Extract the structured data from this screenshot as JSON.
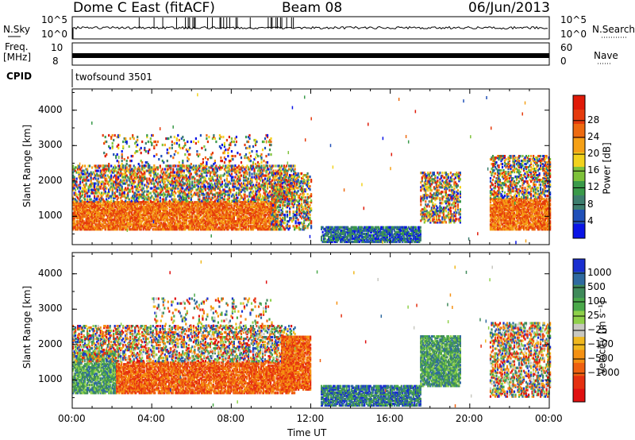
{
  "header": {
    "station": "Dome C East (fitACF)",
    "beam": "Beam 08",
    "date": "06/Jun/2013"
  },
  "strip_panels": {
    "nsky": {
      "label": "N.Sky",
      "left_ticks": [
        "10^5",
        "10^0"
      ],
      "right_ticks": [
        "10^5",
        "10^0"
      ],
      "right_label": "N.Search"
    },
    "freq": {
      "label_line1": "Freq.",
      "label_line2": "[MHz]",
      "left_ticks": [
        "10",
        "8"
      ],
      "right_ticks": [
        "60",
        "0"
      ],
      "right_label": "Nave"
    },
    "cpid": {
      "label": "CPID",
      "value": "twofsound 3501"
    }
  },
  "chart_data": [
    {
      "type": "heatmap",
      "name": "power-panel",
      "ylabel": "Slant Range [km]",
      "xlabel": "",
      "ylim": [
        200,
        4600
      ],
      "xlim": [
        0,
        24
      ],
      "yticks": [
        "1000",
        "2000",
        "3000",
        "4000"
      ],
      "colorbar": {
        "label": "Power [dB]",
        "ticks": [
          "4",
          "8",
          "12",
          "16",
          "20",
          "24",
          "28"
        ],
        "colors": [
          "#0a14e6",
          "#2050b8",
          "#3d7d6e",
          "#3a9a4a",
          "#7ec23a",
          "#f2d21c",
          "#f5a016",
          "#ee6a10",
          "#e53a0c",
          "#e01a08"
        ]
      },
      "echo_regions": [
        {
          "t0": 0.0,
          "t1": 10.3,
          "r0": 600,
          "r1": 1400,
          "level": "high"
        },
        {
          "t0": 0.0,
          "t1": 11.2,
          "r0": 1400,
          "r1": 2400,
          "level": "mixed"
        },
        {
          "t0": 1.5,
          "t1": 10.0,
          "r0": 2400,
          "r1": 3300,
          "level": "sparse"
        },
        {
          "t0": 10.0,
          "t1": 12.0,
          "r0": 600,
          "r1": 2200,
          "level": "mixed"
        },
        {
          "t0": 12.5,
          "t1": 17.5,
          "r0": 250,
          "r1": 700,
          "level": "low"
        },
        {
          "t0": 17.5,
          "t1": 19.5,
          "r0": 800,
          "r1": 2200,
          "level": "mixed"
        },
        {
          "t0": 21.0,
          "t1": 24.0,
          "r0": 600,
          "r1": 1500,
          "level": "high"
        },
        {
          "t0": 21.0,
          "t1": 24.0,
          "r0": 1500,
          "r1": 2700,
          "level": "mixed"
        }
      ]
    },
    {
      "type": "heatmap",
      "name": "velocity-panel",
      "ylabel": "Slant Range [km]",
      "xlabel": "Time UT",
      "ylim": [
        200,
        4600
      ],
      "xlim": [
        0,
        24
      ],
      "yticks": [
        "1000",
        "2000",
        "3000",
        "4000"
      ],
      "xticks": [
        "00:00",
        "04:00",
        "08:00",
        "12:00",
        "16:00",
        "20:00",
        "00:00"
      ],
      "colorbar": {
        "label": "Velocity [m s⁻¹]",
        "ticks": [
          "1000",
          "500",
          "100",
          "25",
          "−25",
          "−100",
          "−500",
          "−1000"
        ],
        "colors": [
          "#1a2fd0",
          "#2f6aa0",
          "#3f8a5a",
          "#4aa84a",
          "#8fd04a",
          "#c8c8c0",
          "#f0b81e",
          "#f59012",
          "#ee6010",
          "#e53010",
          "#e01010"
        ]
      },
      "echo_regions": [
        {
          "t0": 0.0,
          "t1": 2.2,
          "r0": 600,
          "r1": 1800,
          "level": "neg"
        },
        {
          "t0": 2.2,
          "t1": 11.2,
          "r0": 600,
          "r1": 1500,
          "level": "pos"
        },
        {
          "t0": 0.0,
          "t1": 11.2,
          "r0": 1500,
          "r1": 2500,
          "level": "mixed"
        },
        {
          "t0": 4.0,
          "t1": 10.0,
          "r0": 2500,
          "r1": 3300,
          "level": "sparse"
        },
        {
          "t0": 10.5,
          "t1": 12.0,
          "r0": 700,
          "r1": 2200,
          "level": "pos"
        },
        {
          "t0": 12.5,
          "t1": 17.5,
          "r0": 250,
          "r1": 800,
          "level": "low"
        },
        {
          "t0": 17.5,
          "t1": 19.5,
          "r0": 800,
          "r1": 2200,
          "level": "neg"
        },
        {
          "t0": 21.0,
          "t1": 24.0,
          "r0": 500,
          "r1": 2600,
          "level": "mixed"
        }
      ]
    }
  ]
}
